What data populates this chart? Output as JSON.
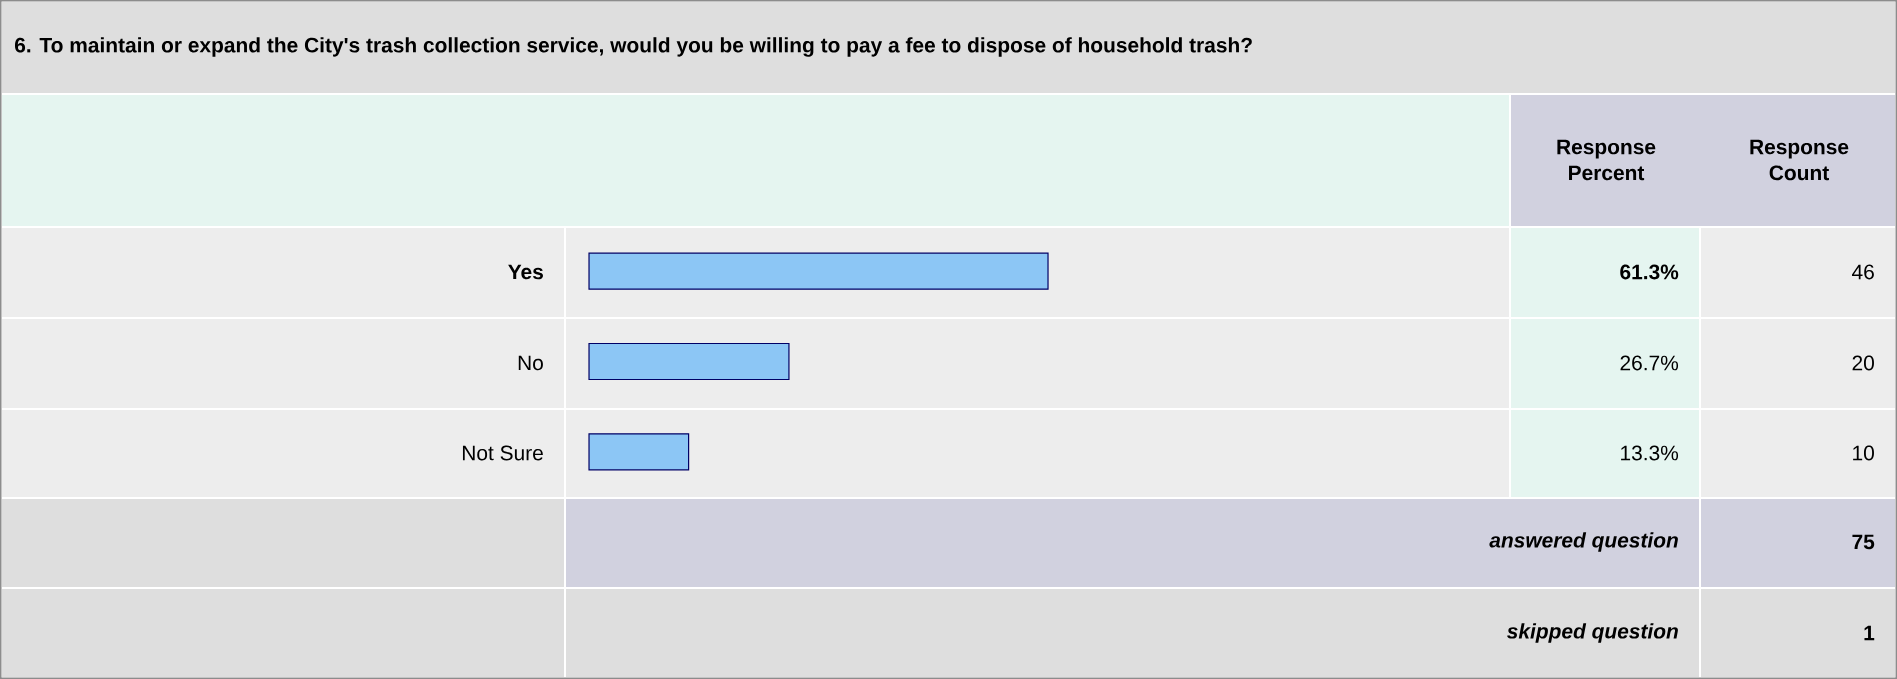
{
  "chart_data": {
    "type": "bar",
    "orientation": "horizontal",
    "title": "6. To maintain or expand the City's trash collection service, would you be willing to pay a fee to dispose of household trash?",
    "categories": [
      "Yes",
      "No",
      "Not Sure"
    ],
    "values": [
      61.3,
      26.7,
      13.3
    ],
    "value_labels": [
      "61.3%",
      "26.7%",
      "13.3%"
    ],
    "color": "#8cc6f5",
    "tick_labels": false,
    "annotations": [
      "Response Percent",
      "Response Count",
      "46",
      "20",
      "10",
      "answered question",
      "75",
      "skipped question",
      "1"
    ]
  }
}
